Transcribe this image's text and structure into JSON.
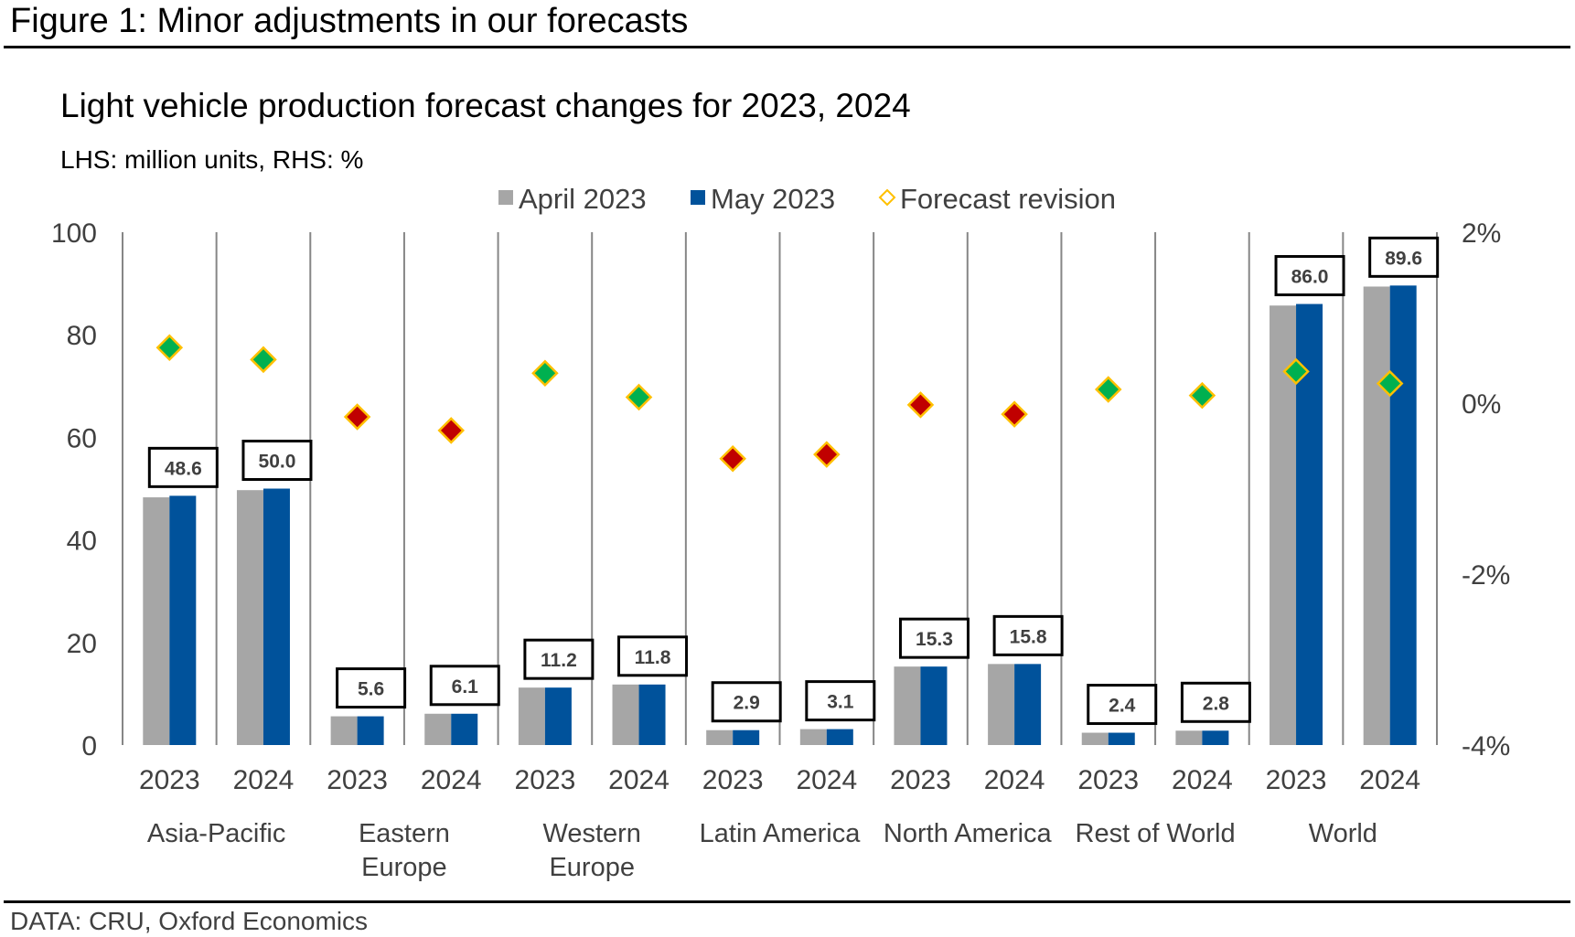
{
  "figure": {
    "title": "Figure 1: Minor adjustments in our forecasts",
    "source": "DATA: CRU, Oxford Economics"
  },
  "chart_data": {
    "type": "bar",
    "title": "Light vehicle production forecast changes for 2023, 2024",
    "subtitle": "LHS: million units, RHS: %",
    "xlabel": "",
    "ylabel": "million units",
    "y2label": "%",
    "ylim": [
      0,
      100
    ],
    "y_ticks": [
      0,
      20,
      40,
      60,
      80,
      100
    ],
    "y_tick_labels": [
      "0",
      "20",
      "40",
      "60",
      "80",
      "100"
    ],
    "y2lim": [
      -4,
      2
    ],
    "y2_ticks": [
      -4,
      -2,
      0,
      2
    ],
    "y2_tick_labels": [
      "-4%",
      "-2%",
      "0%",
      "2%"
    ],
    "grid": false,
    "legend_position": "top-center",
    "legend": [
      {
        "name": "April 2023",
        "marker": "square",
        "color": "#A6A6A6"
      },
      {
        "name": "May 2023",
        "marker": "square",
        "color": "#00529B"
      },
      {
        "name": "Forecast revision",
        "marker": "diamond-outline",
        "color": "#FFC000"
      }
    ],
    "groups": [
      {
        "name": "Asia-Pacific",
        "lines": [
          "Asia-Pacific"
        ]
      },
      {
        "name": "Eastern Europe",
        "lines": [
          "Eastern",
          "Europe"
        ]
      },
      {
        "name": "Western Europe",
        "lines": [
          "Western",
          "Europe"
        ]
      },
      {
        "name": "Latin America",
        "lines": [
          "Latin America"
        ]
      },
      {
        "name": "North America",
        "lines": [
          "North America"
        ]
      },
      {
        "name": "Rest of World",
        "lines": [
          "Rest of World"
        ]
      },
      {
        "name": "World",
        "lines": [
          "World"
        ]
      }
    ],
    "categories": [
      "Asia-Pacific 2023",
      "Asia-Pacific 2024",
      "Eastern Europe 2023",
      "Eastern Europe 2024",
      "Western Europe 2023",
      "Western Europe 2024",
      "Latin America 2023",
      "Latin America 2024",
      "North America 2023",
      "North America 2024",
      "Rest of World 2023",
      "Rest of World 2024",
      "World 2023",
      "World 2024"
    ],
    "x_tick_labels": [
      "2023",
      "2024",
      "2023",
      "2024",
      "2023",
      "2024",
      "2023",
      "2024",
      "2023",
      "2024",
      "2023",
      "2024",
      "2023",
      "2024"
    ],
    "series": [
      {
        "name": "April 2023",
        "axis": "left",
        "type": "bar",
        "color": "#A6A6A6",
        "values": [
          48.3,
          49.7,
          5.6,
          6.1,
          11.2,
          11.8,
          2.9,
          3.1,
          15.3,
          15.8,
          2.4,
          2.8,
          85.7,
          89.4
        ]
      },
      {
        "name": "May 2023",
        "axis": "left",
        "type": "bar",
        "color": "#00529B",
        "values": [
          48.6,
          50.0,
          5.6,
          6.1,
          11.2,
          11.8,
          2.9,
          3.1,
          15.3,
          15.8,
          2.4,
          2.8,
          86.0,
          89.6
        ]
      },
      {
        "name": "Forecast revision",
        "axis": "right",
        "type": "scatter",
        "unit": "%",
        "values": [
          0.65,
          0.51,
          -0.16,
          -0.32,
          0.35,
          0.07,
          -0.65,
          -0.6,
          -0.02,
          -0.13,
          0.16,
          0.09,
          0.37,
          0.23
        ],
        "positive_color": "#00B050",
        "negative_color": "#C00000",
        "outline_color": "#FFC000"
      }
    ],
    "data_labels": [
      "48.6",
      "50.0",
      "5.6",
      "6.1",
      "11.2",
      "11.8",
      "2.9",
      "3.1",
      "15.3",
      "15.8",
      "2.4",
      "2.8",
      "86.0",
      "89.6"
    ]
  }
}
